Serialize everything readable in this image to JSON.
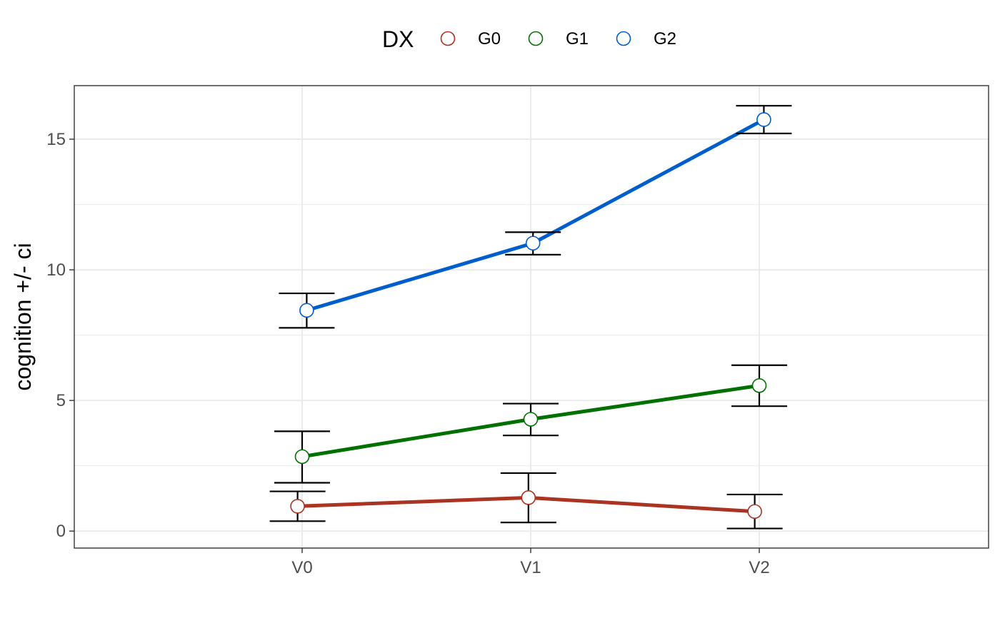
{
  "chart_data": {
    "type": "line",
    "categories": [
      "V0",
      "V1",
      "V2"
    ],
    "ylabel": "cognition  +/- ci",
    "xlabel": "",
    "ylim": [
      -0.65,
      17.05
    ],
    "yticks": [
      0,
      5,
      10,
      15
    ],
    "grid": true,
    "legend": {
      "title": "DX",
      "position": "top"
    },
    "series": [
      {
        "name": "G0",
        "color": "#AA3322",
        "values": [
          0.95,
          1.28,
          0.75
        ],
        "lower": [
          0.38,
          0.33,
          0.1
        ],
        "upper": [
          1.52,
          2.22,
          1.4
        ],
        "x_offset": [
          -0.02,
          -0.01,
          -0.02
        ]
      },
      {
        "name": "G1",
        "color": "#007000",
        "values": [
          2.85,
          4.28,
          5.57
        ],
        "lower": [
          1.85,
          3.66,
          4.78
        ],
        "upper": [
          3.82,
          4.88,
          6.35
        ],
        "x_offset": [
          0.0,
          0.0,
          0.0
        ]
      },
      {
        "name": "G2",
        "color": "#005ECC",
        "values": [
          8.45,
          11.02,
          15.75
        ],
        "lower": [
          7.78,
          10.58,
          15.22
        ],
        "upper": [
          9.1,
          11.44,
          16.28
        ],
        "x_offset": [
          0.02,
          0.01,
          0.02
        ]
      }
    ]
  }
}
